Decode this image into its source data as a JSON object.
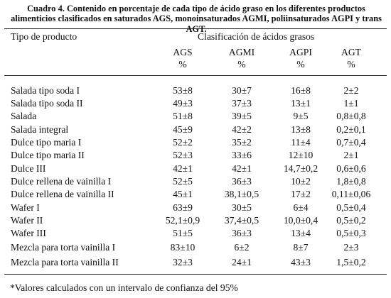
{
  "caption": "Cuadro 4. Contenido en porcentaje de cada tipo de ácido graso en los diferentes productos alimenticios clasificados en saturados AGS, monoinsaturados AGMI, poliinsaturados AGPI y trans AGT.",
  "table": {
    "row_header": "Tipo de producto",
    "group_header": "Clasificación de ácidos grasos",
    "columns": [
      {
        "name": "AGS",
        "unit": "%"
      },
      {
        "name": "AGMI",
        "unit": "%"
      },
      {
        "name": "AGPI",
        "unit": "%"
      },
      {
        "name": "AGT",
        "unit": "%"
      }
    ],
    "rows": [
      {
        "product": "Salada tipo soda I",
        "values": [
          "53±8",
          "30±7",
          "16±8",
          "2±2"
        ]
      },
      {
        "product": "Salada tipo soda II",
        "values": [
          "49±3",
          "37±3",
          "13±1",
          "1±1"
        ]
      },
      {
        "product": "Salada",
        "values": [
          "51±8",
          "39±5",
          "9±5",
          "0,8±0,8"
        ]
      },
      {
        "product": "Salada integral",
        "values": [
          "45±9",
          "42±2",
          "13±8",
          "0,2±0,1"
        ]
      },
      {
        "product": "Dulce tipo maria I",
        "values": [
          "52±2",
          "35±2",
          "11±4",
          "0,7±0,4"
        ]
      },
      {
        "product": "Dulce tipo maria II",
        "values": [
          "52±3",
          "33±6",
          "12±10",
          "2±1"
        ]
      },
      {
        "product": "Dulce III",
        "values": [
          "42±1",
          "42±1",
          "14,7±0,2",
          "0,6±0,6"
        ]
      },
      {
        "product": "Dulce rellena de vainilla I",
        "values": [
          "52±5",
          "36±3",
          "10±2",
          "1,8±0,8"
        ]
      },
      {
        "product": "Dulce rellena de vainilla II",
        "values": [
          "45±1",
          "38,1±0,5",
          "17±2",
          "0,11±0,06"
        ]
      },
      {
        "product": "Wafer I",
        "values": [
          "63±9",
          "30±5",
          "6±4",
          "0,5±0,4"
        ]
      },
      {
        "product": "Wafer II",
        "values": [
          "52,1±0,9",
          "37,4±0,5",
          "10,0±0,4",
          "0,5±0,2"
        ]
      },
      {
        "product": "Wafer III",
        "values": [
          "51±5",
          "36±3",
          "13±4",
          "0,5±0,3"
        ]
      },
      {
        "product": "Mezcla para torta vainilla I",
        "values": [
          "83±10",
          "6±2",
          "8±7",
          "2±3"
        ]
      },
      {
        "product": "Mezcla para torta vainilla II",
        "values": [
          "32±3",
          "24±1",
          "43±3",
          "1,5±0,2"
        ]
      }
    ]
  },
  "footnote": "*Valores calculados  con un intervalo  de confianza del 95%"
}
